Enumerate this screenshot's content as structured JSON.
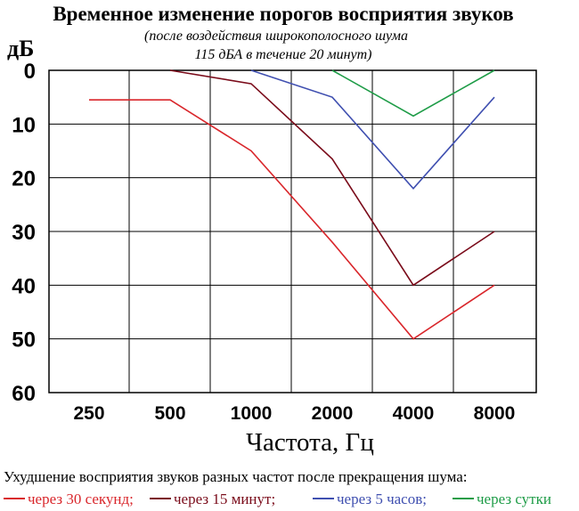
{
  "chart_data": {
    "type": "line",
    "title": "Временное изменение порогов восприятия звуков",
    "subtitle_line1": "(после воздействия широкополосного шума",
    "subtitle_line2": "115 дБА в течение 20 минут)",
    "ylabel": "дБ",
    "xlabel": "Частота, Гц",
    "categories": [
      "250",
      "500",
      "1000",
      "2000",
      "4000",
      "8000"
    ],
    "yticks": [
      "0",
      "10",
      "20",
      "30",
      "40",
      "50",
      "60"
    ],
    "ylim": [
      0,
      60
    ],
    "y_inverted": true,
    "grid": true,
    "caption": "Ухудшение восприятия звуков разных частот после прекращения шума:",
    "series": [
      {
        "name": "через 30 секунд;",
        "color": "#d9262b",
        "points": [
          {
            "x": "250",
            "y": 5.5
          },
          {
            "x": "500",
            "y": 5.5
          },
          {
            "x": "1000",
            "y": 15
          },
          {
            "x": "2000",
            "y": 32
          },
          {
            "x": "4000",
            "y": 50
          },
          {
            "x": "8000",
            "y": 40
          }
        ]
      },
      {
        "name": "через 15 минут;",
        "color": "#7a0b1a",
        "points": [
          {
            "x": "500",
            "y": 0
          },
          {
            "x": "1000",
            "y": 2.5
          },
          {
            "x": "2000",
            "y": 16.5
          },
          {
            "x": "4000",
            "y": 40
          },
          {
            "x": "8000",
            "y": 30
          }
        ]
      },
      {
        "name": "через 5 часов;",
        "color": "#3f4fb0",
        "points": [
          {
            "x": "1000",
            "y": 0
          },
          {
            "x": "2000",
            "y": 5
          },
          {
            "x": "4000",
            "y": 22
          },
          {
            "x": "8000",
            "y": 5
          }
        ]
      },
      {
        "name": "через сутки",
        "color": "#1e9c47",
        "points": [
          {
            "x": "2000",
            "y": 0
          },
          {
            "x": "4000",
            "y": 8.5
          },
          {
            "x": "8000",
            "y": 0
          }
        ]
      }
    ]
  }
}
